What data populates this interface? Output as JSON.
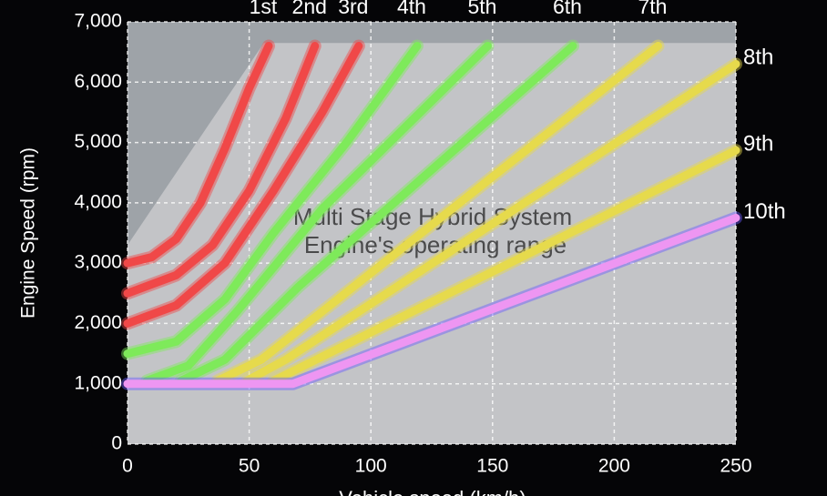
{
  "chart_data": {
    "type": "line",
    "xlabel": "Vehicle speed (km/h)",
    "ylabel": "Engine Speed (rpm)",
    "annotations": [
      "Multi Stage Hybrid System",
      "Engine's operating range"
    ],
    "xlim": [
      0,
      250
    ],
    "ylim": [
      0,
      7000
    ],
    "xticks": [
      0,
      50,
      100,
      150,
      200,
      250
    ],
    "yticks": [
      0,
      {
        "value": 1000,
        "label": "1,000"
      },
      {
        "value": 2000,
        "label": "2,000"
      },
      {
        "value": 3000,
        "label": "3,000"
      },
      {
        "value": 4000,
        "label": "4,000"
      },
      {
        "value": 5000,
        "label": "5,000"
      },
      {
        "value": 6000,
        "label": "6,000"
      },
      {
        "value": 7000,
        "label": "7,000"
      }
    ],
    "grid": true,
    "operating_range": {
      "x": [
        0,
        0,
        56,
        250,
        250
      ],
      "values": [
        0,
        3300,
        6650,
        6650,
        0
      ],
      "color": "#c6c8ca"
    },
    "series": [
      {
        "name": "1st",
        "color": "#f04848",
        "x": [
          0,
          10,
          20,
          30,
          40,
          50,
          58
        ],
        "values": [
          3000,
          3100,
          3400,
          4000,
          4900,
          5900,
          6600
        ]
      },
      {
        "name": "2nd",
        "color": "#f04848",
        "x": [
          0,
          20,
          35,
          50,
          65,
          77
        ],
        "values": [
          2500,
          2800,
          3300,
          4200,
          5400,
          6600
        ]
      },
      {
        "name": "3rd",
        "color": "#f04848",
        "x": [
          0,
          20,
          40,
          60,
          80,
          95
        ],
        "values": [
          2000,
          2300,
          3000,
          4200,
          5500,
          6600
        ]
      },
      {
        "name": "4th",
        "color": "#7eea5a",
        "x": [
          0,
          20,
          40,
          60,
          90,
          119
        ],
        "values": [
          1500,
          1700,
          2400,
          3500,
          5000,
          6600
        ]
      },
      {
        "name": "5th",
        "color": "#7eea5a",
        "x": [
          8,
          25,
          45,
          80,
          148
        ],
        "values": [
          1050,
          1300,
          2200,
          3900,
          6600
        ]
      },
      {
        "name": "6th",
        "color": "#7eea5a",
        "x": [
          22,
          40,
          70,
          183
        ],
        "values": [
          1050,
          1400,
          2600,
          6600
        ]
      },
      {
        "name": "7th",
        "color": "#e6da4c",
        "x": [
          37,
          55,
          218
        ],
        "values": [
          1050,
          1400,
          6600
        ]
      },
      {
        "name": "8th",
        "color": "#e6da4c",
        "x": [
          49,
          65,
          250
        ],
        "values": [
          1050,
          1400,
          6300
        ]
      },
      {
        "name": "9th",
        "color": "#e6da4c",
        "x": [
          60,
          75,
          250
        ],
        "values": [
          1050,
          1350,
          4870
        ]
      },
      {
        "name": "10th",
        "color": "#ee96f2",
        "x": [
          0,
          68,
          250
        ],
        "values": [
          1000,
          1000,
          3750
        ]
      }
    ]
  }
}
